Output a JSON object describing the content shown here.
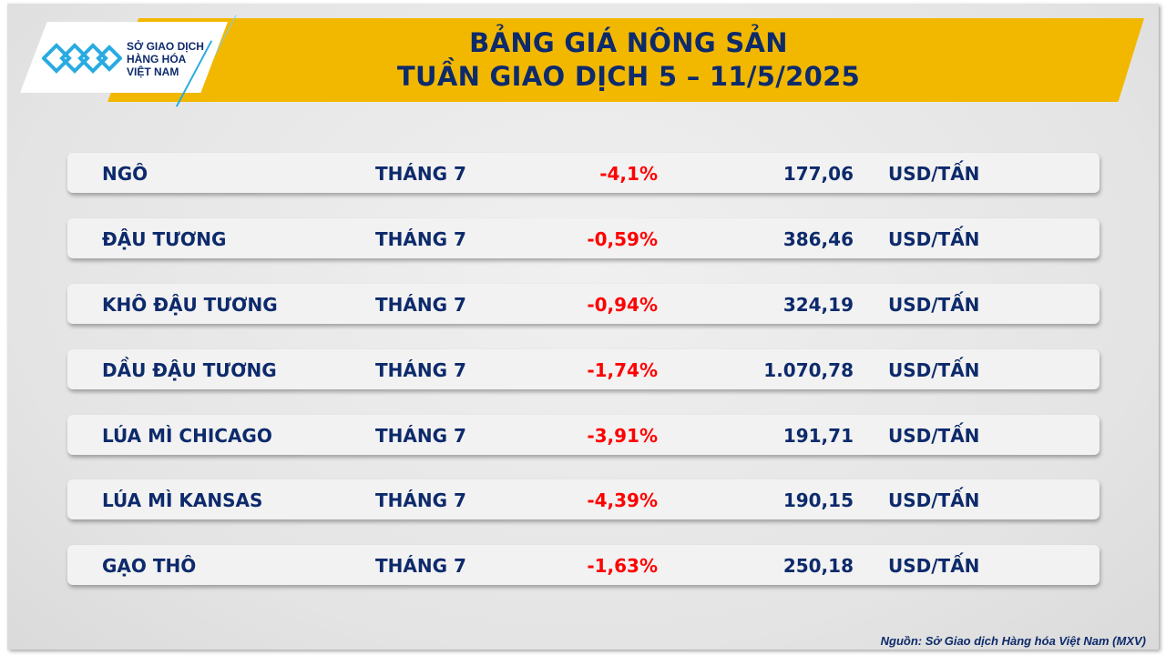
{
  "header": {
    "title_line1": "BẢNG GIÁ NÔNG SẢN",
    "title_line2": "TUẦN GIAO DỊCH 5 – 11/5/2025"
  },
  "logo": {
    "text": [
      "SỞ GIAO DỊCH",
      "HÀNG HÓA",
      "VIỆT NAM"
    ],
    "color": "#29abe2"
  },
  "colors": {
    "banner": "#f2b800",
    "text": "#0d2a6b",
    "negative": "#ff0000"
  },
  "rows": [
    {
      "name": "NGÔ",
      "month": "THÁNG 7",
      "change": "-4,1%",
      "price": "177,06",
      "unit": "USD/TẤN"
    },
    {
      "name": "ĐẬU TƯƠNG",
      "month": "THÁNG 7",
      "change": "-0,59%",
      "price": "386,46",
      "unit": "USD/TẤN"
    },
    {
      "name": "KHÔ ĐẬU TƯƠNG",
      "month": "THÁNG 7",
      "change": "-0,94%",
      "price": "324,19",
      "unit": "USD/TẤN"
    },
    {
      "name": "DẦU ĐẬU TƯƠNG",
      "month": "THÁNG 7",
      "change": "-1,74%",
      "price": "1.070,78",
      "unit": "USD/TẤN"
    },
    {
      "name": "LÚA MÌ CHICAGO",
      "month": "THÁNG 7",
      "change": "-3,91%",
      "price": "191,71",
      "unit": "USD/TẤN"
    },
    {
      "name": "LÚA MÌ KANSAS",
      "month": "THÁNG 7",
      "change": "-4,39%",
      "price": "190,15",
      "unit": "USD/TẤN"
    },
    {
      "name": "GẠO THÔ",
      "month": "THÁNG 7",
      "change": "-1,63%",
      "price": "250,18",
      "unit": "USD/TẤN"
    }
  ],
  "source": "Nguồn: Sở Giao dịch Hàng hóa Việt Nam (MXV)"
}
